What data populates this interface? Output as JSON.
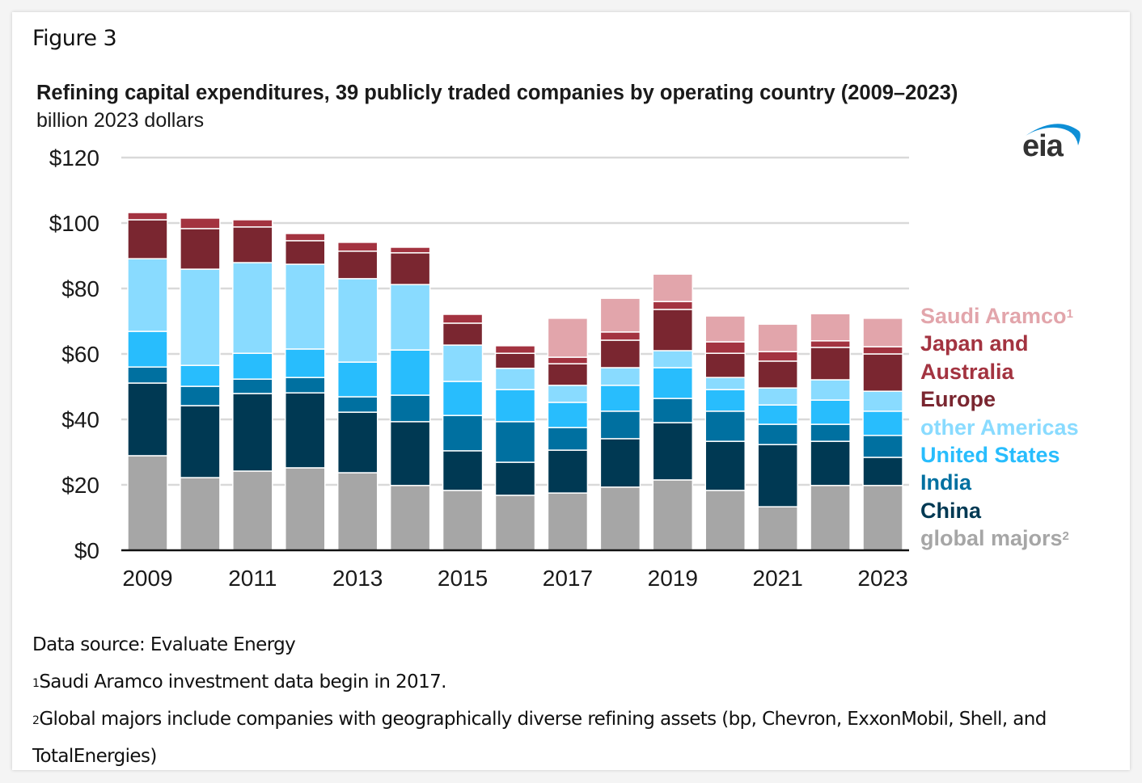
{
  "figure_label": "Figure 3",
  "logo_text": "eia",
  "chart_data": {
    "type": "bar",
    "stacked": true,
    "title": "Refining capital expenditures, 39 publicly traded companies by operating country (2009–2023)",
    "subtitle": "billion 2023 dollars",
    "xlabel": "",
    "ylabel": "billion 2023 dollars",
    "ylim": [
      0,
      120
    ],
    "yticks": [
      0,
      20,
      40,
      60,
      80,
      100,
      120
    ],
    "ytick_labels": [
      "$0",
      "$20",
      "$40",
      "$60",
      "$80",
      "$100",
      "$120"
    ],
    "grid": true,
    "legend_position": "right",
    "categories": [
      "2009",
      "2010",
      "2011",
      "2012",
      "2013",
      "2014",
      "2015",
      "2016",
      "2017",
      "2018",
      "2019",
      "2020",
      "2021",
      "2022",
      "2023"
    ],
    "xtick_labels": [
      "2009",
      "",
      "2011",
      "",
      "2013",
      "",
      "2015",
      "",
      "2017",
      "",
      "2019",
      "",
      "2021",
      "",
      "2023"
    ],
    "series": [
      {
        "name": "global majors",
        "sup": "2",
        "color": "#a6a6a6",
        "legend_color": "#a6a6a6",
        "values": [
          28.9,
          22.2,
          24.2,
          25.2,
          23.7,
          19.8,
          18.3,
          16.8,
          17.5,
          19.3,
          21.5,
          18.3,
          13.3,
          19.8,
          19.8
        ]
      },
      {
        "name": "China",
        "sup": "",
        "color": "#003953",
        "legend_color": "#003953",
        "values": [
          22.2,
          22.0,
          23.7,
          22.9,
          18.5,
          19.5,
          12.1,
          10.1,
          13.1,
          14.8,
          17.5,
          15.0,
          19.0,
          13.5,
          8.6
        ]
      },
      {
        "name": "India",
        "sup": "",
        "color": "#0070a0",
        "legend_color": "#0070a0",
        "values": [
          4.9,
          5.9,
          4.4,
          4.7,
          4.7,
          8.1,
          10.8,
          12.4,
          6.9,
          8.4,
          7.4,
          9.2,
          6.2,
          5.2,
          6.7
        ]
      },
      {
        "name": "United States",
        "sup": "",
        "color": "#28bdfd",
        "legend_color": "#28bdfd",
        "values": [
          10.9,
          6.4,
          7.9,
          8.7,
          10.6,
          13.8,
          10.4,
          9.8,
          7.7,
          7.9,
          9.4,
          6.6,
          5.9,
          7.4,
          7.4
        ]
      },
      {
        "name": "other Americas",
        "sup": "",
        "color": "#89dbff",
        "legend_color": "#89dbff",
        "values": [
          22.2,
          29.4,
          27.7,
          25.9,
          25.5,
          20.0,
          11.1,
          6.5,
          5.2,
          5.4,
          5.2,
          3.7,
          5.2,
          6.2,
          6.1
        ]
      },
      {
        "name": "Europe",
        "sup": "",
        "color": "#7a2630",
        "legend_color": "#7a2630",
        "values": [
          11.9,
          12.4,
          10.9,
          7.2,
          8.4,
          9.7,
          6.7,
          4.6,
          6.6,
          8.4,
          12.6,
          7.4,
          8.2,
          9.9,
          11.4
        ]
      },
      {
        "name": "Japan and Australia",
        "legend_lines": [
          "Japan and",
          "Australia"
        ],
        "sup": "",
        "color": "#a33340",
        "legend_color": "#a33340",
        "values": [
          2.2,
          3.2,
          2.2,
          2.2,
          2.7,
          1.7,
          2.7,
          2.3,
          2.0,
          2.5,
          2.4,
          3.5,
          2.9,
          2.0,
          2.2
        ]
      },
      {
        "name": "Saudi Aramco",
        "sup": "1",
        "color": "#e2a5ab",
        "legend_color": "#e2a5ab",
        "values": [
          0,
          0,
          0,
          0,
          0,
          0,
          0,
          0,
          11.9,
          10.3,
          8.4,
          7.9,
          8.4,
          8.3,
          8.7
        ]
      }
    ]
  },
  "notes": [
    {
      "sup": "",
      "text": "Data source: Evaluate Energy"
    },
    {
      "sup": "1",
      "text": "Saudi Aramco investment data begin in 2017."
    },
    {
      "sup": "2",
      "text": "Global majors include companies with geographically diverse refining assets (bp, Chevron, ExxonMobil, Shell, and"
    },
    {
      "sup": "",
      "text": "TotalEnergies)"
    }
  ]
}
